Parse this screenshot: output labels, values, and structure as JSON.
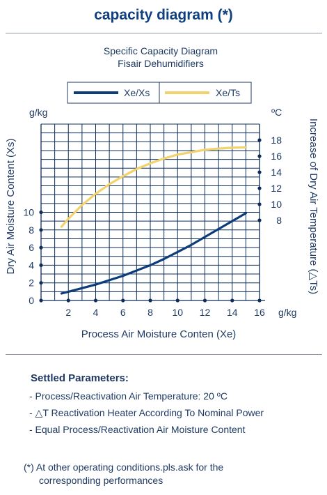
{
  "page_title": "capacity diagram (*)",
  "chart_data": {
    "type": "line",
    "title": "Specific Capacity Diagram",
    "subtitle": "Fisair Dehumidifiers",
    "xlabel": "Process Air Moisture Conten (Xe)",
    "x_unit": "g/kg",
    "xlim": [
      0,
      16
    ],
    "x_ticks": [
      "2",
      "4",
      "6",
      "8",
      "10",
      "12",
      "14",
      "16"
    ],
    "ylabel_left": "Dry Air Moisture Content (Xs)",
    "y_left_unit": "g/kg",
    "ylim_left": [
      0,
      20
    ],
    "y_left_ticks": [
      "0",
      "2",
      "4",
      "6",
      "8",
      "10"
    ],
    "ylabel_right": "Increase of Dry Air Temperature (△Ts)",
    "y_right_unit": "ºC",
    "ylim_right": [
      -2,
      20
    ],
    "y_right_ticks": [
      "8",
      "10",
      "12",
      "14",
      "16",
      "18"
    ],
    "grid": true,
    "legend_position": "top-center",
    "series": [
      {
        "name": "Xe/Xs",
        "axis": "left",
        "color": "#0d3c7a",
        "x": [
          1.5,
          2,
          3,
          4,
          5,
          6,
          7,
          8,
          9,
          10,
          11,
          12,
          13,
          14,
          15
        ],
        "y": [
          0.8,
          1.0,
          1.4,
          1.8,
          2.3,
          2.8,
          3.4,
          4.0,
          4.7,
          5.5,
          6.3,
          7.2,
          8.1,
          9.0,
          9.9
        ]
      },
      {
        "name": "Xe/Ts",
        "axis": "right",
        "color": "#f2d36b",
        "x": [
          1.5,
          2,
          3,
          4,
          5,
          6,
          7,
          8,
          9,
          10,
          11,
          12,
          13,
          14,
          15
        ],
        "y": [
          7.2,
          8.2,
          9.9,
          11.3,
          12.5,
          13.5,
          14.4,
          15.1,
          15.7,
          16.2,
          16.5,
          16.8,
          16.95,
          17.05,
          17.1
        ]
      }
    ]
  },
  "parameters": {
    "heading": "Settled Parameters:",
    "items": [
      "- Process/Reactivation Air Temperature: 20 ºC",
      "- △T Reactivation Heater According To Nominal Power",
      "- Equal Process/Reactivation Air Moisture Content"
    ]
  },
  "footnote": {
    "line1": "(*) At other operating conditions.pls.ask for the",
    "line2": "corresponding performances"
  }
}
